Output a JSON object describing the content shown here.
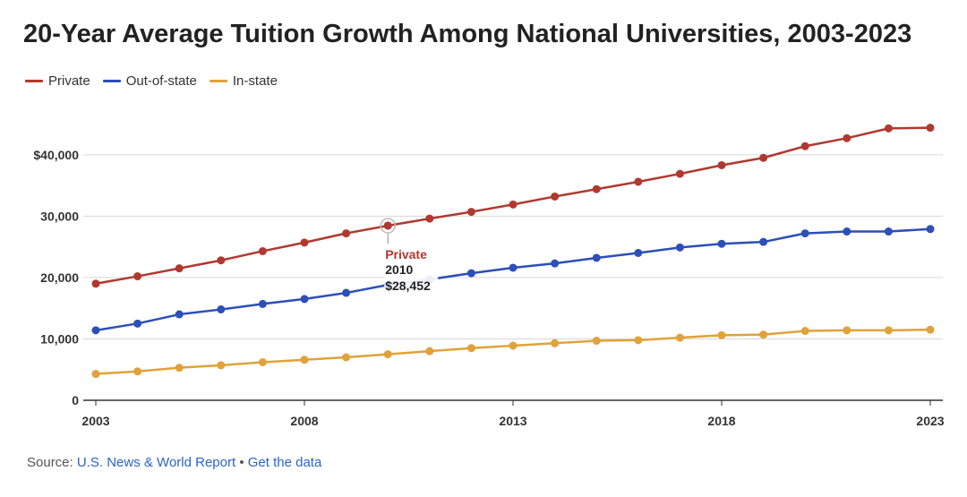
{
  "colors": {
    "private": "#b0392f",
    "out_of_state": "#2c4fb8",
    "in_state": "#e0a23a",
    "grid": "#d6d6d6",
    "axis": "#333333"
  },
  "chart_data": {
    "type": "line",
    "title": "20-Year Average Tuition Growth Among National Universities, 2003-2023",
    "xlabel": "",
    "ylabel": "",
    "x": [
      2003,
      2004,
      2005,
      2006,
      2007,
      2008,
      2009,
      2010,
      2011,
      2012,
      2013,
      2014,
      2015,
      2016,
      2017,
      2018,
      2019,
      2020,
      2021,
      2022,
      2023
    ],
    "xlim": [
      2003,
      2023
    ],
    "ylim": [
      0,
      48000
    ],
    "x_ticks": [
      2003,
      2008,
      2013,
      2018,
      2023
    ],
    "y_ticks": [
      0,
      10000,
      20000,
      30000,
      40000
    ],
    "y_tick_labels": [
      "0",
      "10,000",
      "20,000",
      "30,000",
      "$40,000"
    ],
    "grid": true,
    "legend_position": "top-left",
    "series": [
      {
        "name": "Private",
        "color_key": "private",
        "values": [
          19000,
          20200,
          21500,
          22800,
          24300,
          25700,
          27200,
          28452,
          29600,
          30700,
          31900,
          33200,
          34400,
          35600,
          36900,
          38300,
          39500,
          41400,
          42700,
          44300,
          44400
        ]
      },
      {
        "name": "Out-of-state",
        "color_key": "out_of_state",
        "values": [
          11400,
          12500,
          14000,
          14800,
          15700,
          16500,
          17500,
          18800,
          19700,
          20700,
          21600,
          22300,
          23200,
          24000,
          24900,
          25500,
          25800,
          27200,
          27500,
          27500,
          27900
        ]
      },
      {
        "name": "In-state",
        "color_key": "in_state",
        "values": [
          4300,
          4700,
          5300,
          5700,
          6200,
          6600,
          7000,
          7500,
          8000,
          8500,
          8900,
          9300,
          9700,
          9800,
          10200,
          10600,
          10700,
          11300,
          11400,
          11400,
          11500
        ]
      }
    ],
    "tooltip": {
      "series": "Private",
      "year": "2010",
      "value": "$28,452"
    }
  },
  "footer": {
    "prefix": "Source: ",
    "source": "U.S. News & World Report",
    "separator": " • ",
    "link": "Get the data"
  }
}
